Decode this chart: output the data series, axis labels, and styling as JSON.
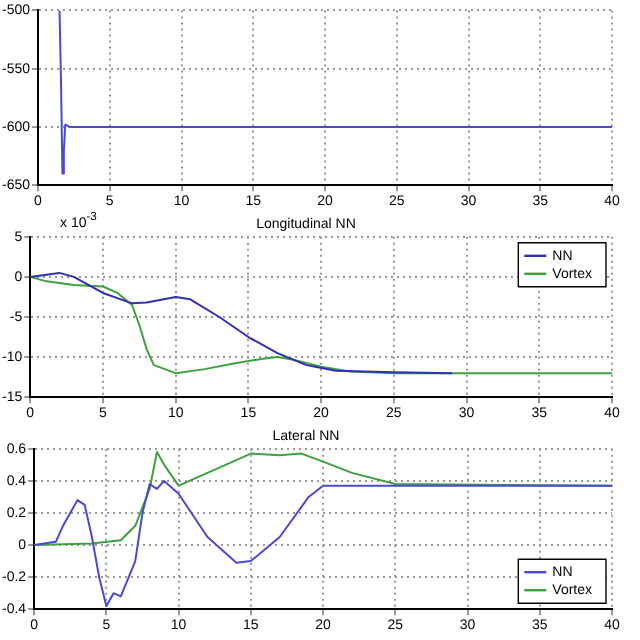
{
  "chart_data": [
    {
      "type": "line",
      "xlim": [
        0,
        40
      ],
      "xticks": [
        0,
        5,
        10,
        15,
        20,
        25,
        30,
        35,
        40
      ],
      "ylim": [
        -650,
        -500
      ],
      "yticks": [
        -650,
        -600,
        -550,
        -500
      ],
      "grid": true,
      "legend": false,
      "series": [
        {
          "color": "#4a4ad0",
          "x": [
            1.5,
            1.6,
            1.7,
            1.8,
            1.9,
            2.2,
            40
          ],
          "values": [
            -500,
            -560,
            -640,
            -620,
            -598,
            -600,
            -600
          ]
        }
      ]
    },
    {
      "type": "line",
      "title": "Longitudinal NN",
      "annotations": [
        "x 10$^{-3}$"
      ],
      "xlim": [
        0,
        40
      ],
      "xticks": [
        0,
        5,
        10,
        15,
        20,
        25,
        30,
        35,
        40
      ],
      "ylim": [
        -15,
        5
      ],
      "yticks": [
        -15,
        -10,
        -5,
        0,
        5
      ],
      "grid": true,
      "legend": "top right",
      "series": [
        {
          "name": "NN",
          "color": "#3030b0",
          "x": [
            0,
            2,
            3,
            5,
            7,
            8,
            10,
            11,
            13,
            15,
            17,
            19,
            21,
            25,
            29
          ],
          "values": [
            0,
            0.5,
            0,
            -2,
            -3.3,
            -3.2,
            -2.5,
            -2.8,
            -5,
            -7.5,
            -9.5,
            -11,
            -11.7,
            -11.9,
            -12
          ]
        },
        {
          "name": "Vortex",
          "color": "#40a040",
          "x": [
            0,
            1,
            3,
            5,
            6,
            7,
            7.5,
            8,
            8.5,
            10,
            12,
            14,
            16,
            17,
            18,
            20,
            22,
            25,
            40
          ],
          "values": [
            0,
            -0.5,
            -1,
            -1.2,
            -2,
            -3.5,
            -6,
            -9,
            -11,
            -12,
            -11.5,
            -10.8,
            -10.2,
            -10,
            -10.3,
            -11.2,
            -11.8,
            -12,
            -12
          ]
        }
      ]
    },
    {
      "type": "line",
      "title": "Lateral NN",
      "xlim": [
        0,
        40
      ],
      "xticks": [
        0,
        5,
        10,
        15,
        20,
        25,
        30,
        35,
        40
      ],
      "ylim": [
        -0.4,
        0.6
      ],
      "yticks": [
        -0.4,
        -0.2,
        0,
        0.2,
        0.4,
        0.6
      ],
      "grid": true,
      "legend": "bottom right",
      "series": [
        {
          "name": "NN",
          "color": "#4a4ad0",
          "x": [
            0,
            1.5,
            2,
            3,
            3.5,
            4,
            4.5,
            5,
            5.5,
            6,
            7,
            7.5,
            8,
            8.5,
            9,
            10,
            12,
            14,
            15,
            17,
            19,
            20,
            40
          ],
          "values": [
            0,
            0.02,
            0.12,
            0.28,
            0.25,
            0.05,
            -0.2,
            -0.38,
            -0.3,
            -0.32,
            -0.1,
            0.2,
            0.38,
            0.35,
            0.4,
            0.32,
            0.05,
            -0.11,
            -0.1,
            0.05,
            0.3,
            0.37,
            0.37
          ]
        },
        {
          "name": "Vortex",
          "color": "#40a040",
          "x": [
            0,
            4,
            6,
            7,
            8,
            8.5,
            9,
            10,
            12,
            15,
            17,
            18.5,
            20,
            22,
            25,
            40
          ],
          "values": [
            0,
            0.01,
            0.03,
            0.12,
            0.35,
            0.58,
            0.5,
            0.37,
            0.45,
            0.57,
            0.56,
            0.57,
            0.52,
            0.45,
            0.38,
            0.37
          ]
        }
      ]
    }
  ]
}
